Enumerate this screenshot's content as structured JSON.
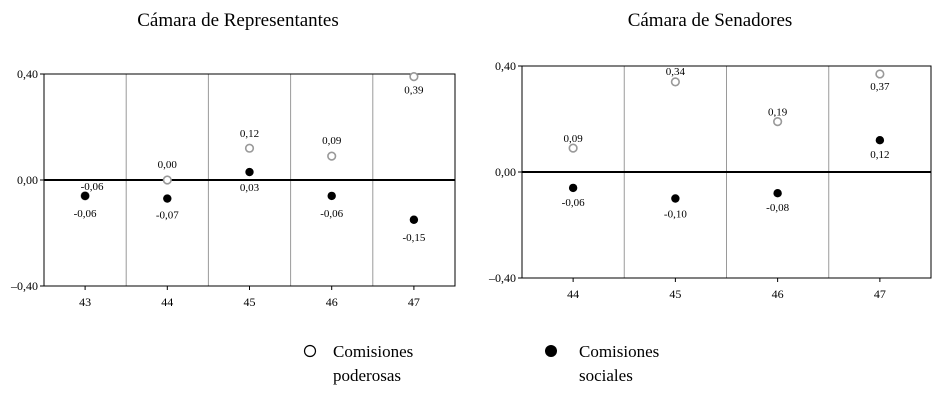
{
  "chart_data": [
    {
      "type": "scatter",
      "title": "Cámara de Representantes",
      "xlabel": "",
      "ylabel": "",
      "categories": [
        "43",
        "44",
        "45",
        "46",
        "47"
      ],
      "ylim": [
        -0.4,
        0.4
      ],
      "yticks": [
        -0.4,
        0.0,
        0.4
      ],
      "ytick_labels": [
        "–0,40",
        "0,00",
        "0,40"
      ],
      "grid": "vertical separators between categories",
      "series": [
        {
          "name": "Comisiones poderosas",
          "marker": "open-circle",
          "color": "#999999",
          "values": [
            -0.06,
            0.0,
            0.12,
            0.09,
            0.39
          ],
          "labels": [
            "-0,06",
            "0,00",
            "0,12",
            "0,09",
            "0,39"
          ]
        },
        {
          "name": "Comisiones sociales",
          "marker": "filled-circle",
          "color": "#000000",
          "values": [
            -0.06,
            -0.07,
            0.03,
            -0.06,
            -0.15
          ],
          "labels": [
            "-0,06",
            "-0,07",
            "0,03",
            "-0,06",
            "-0,15"
          ]
        }
      ]
    },
    {
      "type": "scatter",
      "title": "Cámara de Senadores",
      "xlabel": "",
      "ylabel": "",
      "categories": [
        "44",
        "45",
        "46",
        "47"
      ],
      "ylim": [
        -0.4,
        0.4
      ],
      "yticks": [
        -0.4,
        0.0,
        0.4
      ],
      "ytick_labels": [
        "–0,40",
        "0,00",
        "0,40"
      ],
      "grid": "vertical separators between categories",
      "series": [
        {
          "name": "Comisiones poderosas",
          "marker": "open-circle",
          "color": "#999999",
          "values": [
            0.09,
            0.34,
            0.19,
            0.37
          ],
          "labels": [
            "0,09",
            "0,34",
            "0,19",
            "0,37"
          ]
        },
        {
          "name": "Comisiones sociales",
          "marker": "filled-circle",
          "color": "#000000",
          "values": [
            -0.06,
            -0.1,
            -0.08,
            0.12
          ],
          "labels": [
            "-0,06",
            "-0,10",
            "-0,08",
            "0,12"
          ]
        }
      ]
    }
  ],
  "legend": {
    "position": "bottom-center",
    "items": [
      {
        "icon": "open-circle-icon",
        "line1": "Comisiones",
        "line2": "poderosas"
      },
      {
        "icon": "filled-circle-icon",
        "line1": "Comisiones",
        "line2": "sociales"
      }
    ]
  }
}
